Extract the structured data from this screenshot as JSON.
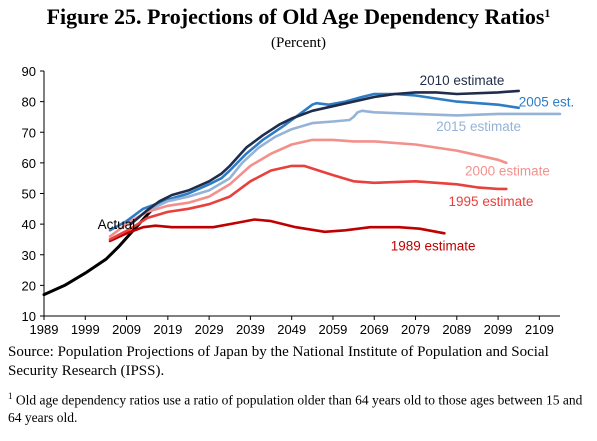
{
  "header": {
    "title": "Figure 25. Projections of Old Age Dependency Ratios",
    "title_note_marker": "1",
    "subtitle": "(Percent)"
  },
  "chart_data": {
    "type": "line",
    "title": "Figure 25. Projections of Old Age Dependency Ratios",
    "subtitle": "(Percent)",
    "xlabel": "",
    "ylabel": "",
    "xlim": [
      1989,
      2114
    ],
    "ylim": [
      10,
      90
    ],
    "x_ticks": [
      "1989",
      "1999",
      "2009",
      "2019",
      "2029",
      "2039",
      "2049",
      "2059",
      "2069",
      "2079",
      "2089",
      "2099",
      "2109"
    ],
    "y_ticks": [
      "10",
      "20",
      "30",
      "40",
      "50",
      "60",
      "70",
      "80",
      "90"
    ],
    "grid": false,
    "series": [
      {
        "name": "Actual",
        "color": "#000000",
        "points": [
          [
            1989,
            17
          ],
          [
            1994,
            20
          ],
          [
            1999,
            24
          ],
          [
            2004,
            28.5
          ],
          [
            2007,
            32.5
          ],
          [
            2010,
            37
          ],
          [
            2012,
            40
          ],
          [
            2014,
            43
          ],
          [
            2016,
            46
          ],
          [
            2017,
            47
          ]
        ]
      },
      {
        "name": "1989 estimate",
        "color": "#c00000",
        "points": [
          [
            2005,
            34.5
          ],
          [
            2009,
            37
          ],
          [
            2013,
            39
          ],
          [
            2016,
            39.5
          ],
          [
            2020,
            39
          ],
          [
            2030,
            39
          ],
          [
            2036,
            40.5
          ],
          [
            2040,
            41.5
          ],
          [
            2044,
            41
          ],
          [
            2050,
            39
          ],
          [
            2057,
            37.5
          ],
          [
            2062,
            38
          ],
          [
            2068,
            39
          ],
          [
            2075,
            39
          ],
          [
            2080,
            38.5
          ],
          [
            2086,
            37
          ]
        ]
      },
      {
        "name": "1995 estimate",
        "color": "#e8403c",
        "points": [
          [
            2005,
            35
          ],
          [
            2010,
            38.5
          ],
          [
            2014,
            42
          ],
          [
            2019,
            44
          ],
          [
            2024,
            45
          ],
          [
            2029,
            46.5
          ],
          [
            2034,
            49
          ],
          [
            2039,
            54
          ],
          [
            2044,
            57.5
          ],
          [
            2049,
            59
          ],
          [
            2052,
            59
          ],
          [
            2059,
            56
          ],
          [
            2064,
            54
          ],
          [
            2069,
            53.5
          ],
          [
            2079,
            54
          ],
          [
            2089,
            53
          ],
          [
            2094,
            52
          ],
          [
            2099,
            51.5
          ],
          [
            2101,
            51.5
          ]
        ]
      },
      {
        "name": "2000 estimate",
        "color": "#f4908c",
        "points": [
          [
            2005,
            36
          ],
          [
            2010,
            41
          ],
          [
            2014,
            44
          ],
          [
            2019,
            46
          ],
          [
            2024,
            47
          ],
          [
            2029,
            49
          ],
          [
            2034,
            53
          ],
          [
            2039,
            59
          ],
          [
            2044,
            63
          ],
          [
            2049,
            66
          ],
          [
            2054,
            67.5
          ],
          [
            2059,
            67.5
          ],
          [
            2064,
            67
          ],
          [
            2069,
            67
          ],
          [
            2079,
            66
          ],
          [
            2089,
            64
          ],
          [
            2094,
            62.5
          ],
          [
            2099,
            61
          ],
          [
            2101,
            60
          ]
        ]
      },
      {
        "name": "2005 est.",
        "color": "#2e7cc6",
        "points": [
          [
            2005,
            38
          ],
          [
            2009,
            41
          ],
          [
            2013,
            45
          ],
          [
            2019,
            48
          ],
          [
            2024,
            50
          ],
          [
            2029,
            53
          ],
          [
            2032,
            55
          ],
          [
            2034,
            57.5
          ],
          [
            2038,
            63
          ],
          [
            2042,
            67.5
          ],
          [
            2047,
            72
          ],
          [
            2050,
            75
          ],
          [
            2052,
            77
          ],
          [
            2054,
            79
          ],
          [
            2055,
            79.5
          ],
          [
            2058,
            79
          ],
          [
            2062,
            80
          ],
          [
            2066,
            81.5
          ],
          [
            2069,
            82.5
          ],
          [
            2074,
            82.5
          ],
          [
            2079,
            82
          ],
          [
            2089,
            80
          ],
          [
            2099,
            79
          ],
          [
            2104,
            78
          ]
        ]
      },
      {
        "name": "2015 estimate",
        "color": "#95b3d7",
        "points": [
          [
            2015,
            45
          ],
          [
            2019,
            47.5
          ],
          [
            2024,
            49
          ],
          [
            2029,
            51
          ],
          [
            2034,
            55
          ],
          [
            2037,
            60
          ],
          [
            2041,
            65
          ],
          [
            2045,
            68.5
          ],
          [
            2049,
            71
          ],
          [
            2054,
            73
          ],
          [
            2059,
            73.5
          ],
          [
            2063,
            74
          ],
          [
            2064,
            75
          ],
          [
            2065,
            76.5
          ],
          [
            2066,
            77
          ],
          [
            2069,
            76.5
          ],
          [
            2079,
            76
          ],
          [
            2089,
            75.5
          ],
          [
            2099,
            76
          ],
          [
            2109,
            76
          ],
          [
            2114,
            76
          ]
        ]
      },
      {
        "name": "2010 estimate",
        "color": "#1f2d4a",
        "points": [
          [
            2010,
            40
          ],
          [
            2014,
            44.5
          ],
          [
            2017,
            47.5
          ],
          [
            2020,
            49.5
          ],
          [
            2024,
            51
          ],
          [
            2029,
            54
          ],
          [
            2032,
            56.5
          ],
          [
            2034,
            59
          ],
          [
            2038,
            65
          ],
          [
            2042,
            69
          ],
          [
            2046,
            72.5
          ],
          [
            2049,
            74.5
          ],
          [
            2054,
            77
          ],
          [
            2059,
            78.5
          ],
          [
            2064,
            80
          ],
          [
            2069,
            81.5
          ],
          [
            2074,
            82.5
          ],
          [
            2079,
            83
          ],
          [
            2084,
            83
          ],
          [
            2089,
            82.5
          ],
          [
            2099,
            83
          ],
          [
            2104,
            83.5
          ]
        ]
      }
    ],
    "labels": [
      {
        "text": "Actual",
        "color": "#000000",
        "x": 2002,
        "y": 40
      },
      {
        "text": "2010 estimate",
        "color": "#1f2d4a",
        "x": 2080,
        "y": 87
      },
      {
        "text": "2005 est.",
        "color": "#2e7cc6",
        "x": 2104,
        "y": 80
      },
      {
        "text": "2015 estimate",
        "color": "#95b3d7",
        "x": 2084,
        "y": 72
      },
      {
        "text": "2000 estimate",
        "color": "#f4908c",
        "x": 2091,
        "y": 57.5
      },
      {
        "text": "1995 estimate",
        "color": "#e8403c",
        "x": 2087,
        "y": 47.5
      },
      {
        "text": "1989 estimate",
        "color": "#c00000",
        "x": 2073,
        "y": 33
      }
    ]
  },
  "source": {
    "text": "Source:  Population Projections of Japan by the National Institute of Population and Social Security Research (IPSS)."
  },
  "footnote": {
    "marker": "1",
    "text": "Old age dependency ratios use a ratio of population older than 64 years old to those ages between 15 and 64 years old."
  }
}
